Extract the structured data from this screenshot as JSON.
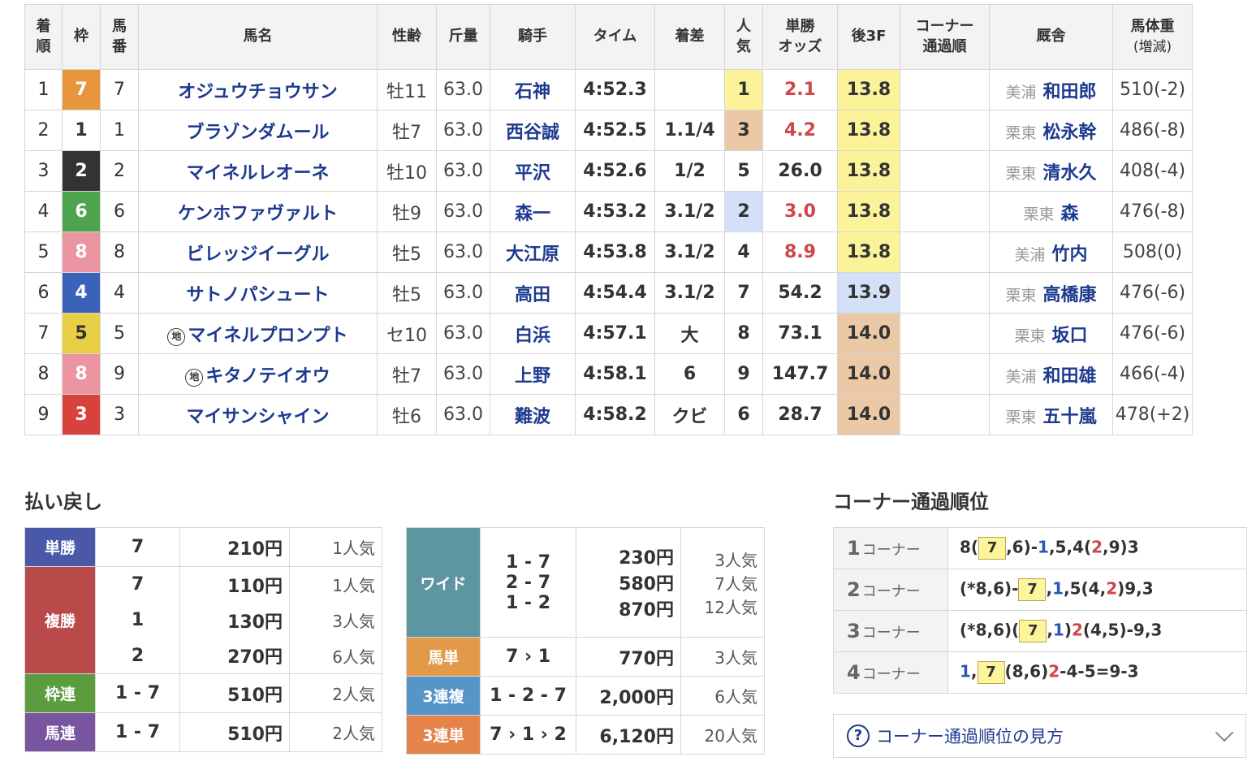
{
  "headers": {
    "rank": [
      "着",
      "順"
    ],
    "frame": "枠",
    "num": [
      "馬",
      "番"
    ],
    "horse": "馬名",
    "agesex": "性齢",
    "weight": "斤量",
    "jockey": "騎手",
    "time": "タイム",
    "margin": "着差",
    "pop": [
      "人",
      "気"
    ],
    "odds": [
      "単勝",
      "オッズ"
    ],
    "last3f": "後3F",
    "corner": [
      "コーナー",
      "通過順"
    ],
    "stable": "厩舎",
    "body": [
      "馬体重",
      "(増減)"
    ]
  },
  "colors": {
    "frame1": "#ffffff",
    "frame2": "#333333",
    "frame3": "#d9423c",
    "frame4": "#3a62b8",
    "frame5": "#e9cf45",
    "frame6": "#4ea34e",
    "frame7": "#e8963e",
    "frame8": "#eb94a2",
    "highlight_yellow": "#fbf39a",
    "highlight_tan": "#ecc9a6",
    "highlight_blue": "#d3e0f7",
    "label_blue": "#4a58a8",
    "label_red": "#b84a4a",
    "label_green": "#5b9d3e",
    "label_purple": "#7955a0",
    "label_teal": "#5d96a0",
    "label_orange": "#e39a48",
    "label_sky": "#5795c9",
    "label_darkorange": "#e5844a"
  },
  "chi_mark": "地",
  "rows": [
    {
      "rank": "1",
      "frame": "7",
      "num": "7",
      "chi": false,
      "horse": "オジュウチョウサン",
      "agesex": "牡11",
      "weight": "63.0",
      "jockey": "石神",
      "time": "4:52.3",
      "margin": "",
      "pop": "1",
      "odds": "2.1",
      "odds_red": true,
      "last3f": "13.8",
      "corner": "",
      "region": "美浦",
      "trainer": "和田郎",
      "body": "510(-2)"
    },
    {
      "rank": "2",
      "frame": "1",
      "num": "1",
      "chi": false,
      "horse": "ブラゾンダムール",
      "agesex": "牡7",
      "weight": "63.0",
      "jockey": "西谷誠",
      "time": "4:52.5",
      "margin": "1.1/4",
      "pop": "3",
      "odds": "4.2",
      "odds_red": true,
      "last3f": "13.8",
      "corner": "",
      "region": "栗東",
      "trainer": "松永幹",
      "body": "486(-8)"
    },
    {
      "rank": "3",
      "frame": "2",
      "num": "2",
      "chi": false,
      "horse": "マイネルレオーネ",
      "agesex": "牡10",
      "weight": "63.0",
      "jockey": "平沢",
      "time": "4:52.6",
      "margin": "1/2",
      "pop": "5",
      "odds": "26.0",
      "odds_red": false,
      "last3f": "13.8",
      "corner": "",
      "region": "栗東",
      "trainer": "清水久",
      "body": "408(-4)"
    },
    {
      "rank": "4",
      "frame": "6",
      "num": "6",
      "chi": false,
      "horse": "ケンホファヴァルト",
      "agesex": "牡9",
      "weight": "63.0",
      "jockey": "森一",
      "time": "4:53.2",
      "margin": "3.1/2",
      "pop": "2",
      "odds": "3.0",
      "odds_red": true,
      "last3f": "13.8",
      "corner": "",
      "region": "栗東",
      "trainer": "森",
      "body": "476(-8)"
    },
    {
      "rank": "5",
      "frame": "8",
      "num": "8",
      "chi": false,
      "horse": "ビレッジイーグル",
      "agesex": "牡5",
      "weight": "63.0",
      "jockey": "大江原",
      "time": "4:53.8",
      "margin": "3.1/2",
      "pop": "4",
      "odds": "8.9",
      "odds_red": true,
      "last3f": "13.8",
      "corner": "",
      "region": "美浦",
      "trainer": "竹内",
      "body": "508(0)"
    },
    {
      "rank": "6",
      "frame": "4",
      "num": "4",
      "chi": false,
      "horse": "サトノパシュート",
      "agesex": "牡5",
      "weight": "63.0",
      "jockey": "高田",
      "time": "4:54.4",
      "margin": "3.1/2",
      "pop": "7",
      "odds": "54.2",
      "odds_red": false,
      "last3f": "13.9",
      "corner": "",
      "region": "栗東",
      "trainer": "高橋康",
      "body": "476(-6)"
    },
    {
      "rank": "7",
      "frame": "5",
      "num": "5",
      "chi": true,
      "horse": "マイネルプロンプト",
      "agesex": "セ10",
      "weight": "63.0",
      "jockey": "白浜",
      "time": "4:57.1",
      "margin": "大",
      "pop": "8",
      "odds": "73.1",
      "odds_red": false,
      "last3f": "14.0",
      "corner": "",
      "region": "栗東",
      "trainer": "坂口",
      "body": "476(-6)"
    },
    {
      "rank": "8",
      "frame": "8",
      "num": "9",
      "chi": true,
      "horse": "キタノテイオウ",
      "agesex": "牡7",
      "weight": "63.0",
      "jockey": "上野",
      "time": "4:58.1",
      "margin": "6",
      "pop": "9",
      "odds": "147.7",
      "odds_red": false,
      "last3f": "14.0",
      "corner": "",
      "region": "美浦",
      "trainer": "和田雄",
      "body": "466(-4)"
    },
    {
      "rank": "9",
      "frame": "3",
      "num": "3",
      "chi": false,
      "horse": "マイサンシャイン",
      "agesex": "牡6",
      "weight": "63.0",
      "jockey": "難波",
      "time": "4:58.2",
      "margin": "クビ",
      "pop": "6",
      "odds": "28.7",
      "odds_red": false,
      "last3f": "14.0",
      "corner": "",
      "region": "栗東",
      "trainer": "五十嵐",
      "body": "478(+2)"
    }
  ],
  "payout_title": "払い戻し",
  "payout_left": [
    {
      "label": "単勝",
      "color": "#4a58a8",
      "lines": [
        {
          "combo": "7",
          "amount": "210円",
          "pop": "1人気"
        }
      ]
    },
    {
      "label": "複勝",
      "color": "#b84a4a",
      "lines": [
        {
          "combo": "7",
          "amount": "110円",
          "pop": "1人気"
        },
        {
          "combo": "1",
          "amount": "130円",
          "pop": "3人気"
        },
        {
          "combo": "2",
          "amount": "270円",
          "pop": "6人気"
        }
      ]
    },
    {
      "label": "枠連",
      "color": "#5b9d3e",
      "lines": [
        {
          "combo": "1 - 7",
          "amount": "510円",
          "pop": "2人気"
        }
      ]
    },
    {
      "label": "馬連",
      "color": "#7955a0",
      "lines": [
        {
          "combo": "1 - 7",
          "amount": "510円",
          "pop": "2人気"
        }
      ]
    }
  ],
  "payout_right": [
    {
      "label": "ワイド",
      "color": "#5d96a0",
      "lines": [
        {
          "combo": "1 - 7",
          "amount": "230円",
          "pop": "3人気"
        },
        {
          "combo": "2 - 7",
          "amount": "580円",
          "pop": "7人気"
        },
        {
          "combo": "1 - 2",
          "amount": "870円",
          "pop": "12人気"
        }
      ]
    },
    {
      "label": "馬単",
      "color": "#e39a48",
      "lines": [
        {
          "combo": "7 › 1",
          "amount": "770円",
          "pop": "3人気"
        }
      ]
    },
    {
      "label": "3連複",
      "color": "#5795c9",
      "lines": [
        {
          "combo": "1 - 2 - 7",
          "amount": "2,000円",
          "pop": "6人気"
        }
      ]
    },
    {
      "label": "3連単",
      "color": "#e5844a",
      "lines": [
        {
          "combo": "7 › 1 › 2",
          "amount": "6,120円",
          "pop": "20人気"
        }
      ]
    }
  ],
  "corner_title": "コーナー通過順位",
  "corners": [
    {
      "num": "1",
      "label": "コーナー",
      "parts": [
        {
          "t": "8("
        },
        {
          "t": "7",
          "hl": true
        },
        {
          "t": ",6)-"
        },
        {
          "t": "1",
          "c": "b"
        },
        {
          "t": ",5,4("
        },
        {
          "t": "2",
          "c": "r"
        },
        {
          "t": ",9)3"
        }
      ]
    },
    {
      "num": "2",
      "label": "コーナー",
      "parts": [
        {
          "t": "(*8,6)-"
        },
        {
          "t": "7",
          "hl": true
        },
        {
          "t": ","
        },
        {
          "t": "1",
          "c": "b"
        },
        {
          "t": ",5(4,"
        },
        {
          "t": "2",
          "c": "r"
        },
        {
          "t": ")9,3"
        }
      ]
    },
    {
      "num": "3",
      "label": "コーナー",
      "parts": [
        {
          "t": "(*8,6)("
        },
        {
          "t": "7",
          "hl": true
        },
        {
          "t": ","
        },
        {
          "t": "1",
          "c": "b"
        },
        {
          "t": ")"
        },
        {
          "t": "2",
          "c": "r"
        },
        {
          "t": "(4,5)-9,3"
        }
      ]
    },
    {
      "num": "4",
      "label": "コーナー",
      "parts": [
        {
          "t": "1",
          "c": "b"
        },
        {
          "t": ","
        },
        {
          "t": "7",
          "hl": true
        },
        {
          "t": "(8,6)"
        },
        {
          "t": "2",
          "c": "r"
        },
        {
          "t": "-4-5=9-3"
        }
      ]
    }
  ],
  "corner_help": "コーナー通過順位の見方"
}
